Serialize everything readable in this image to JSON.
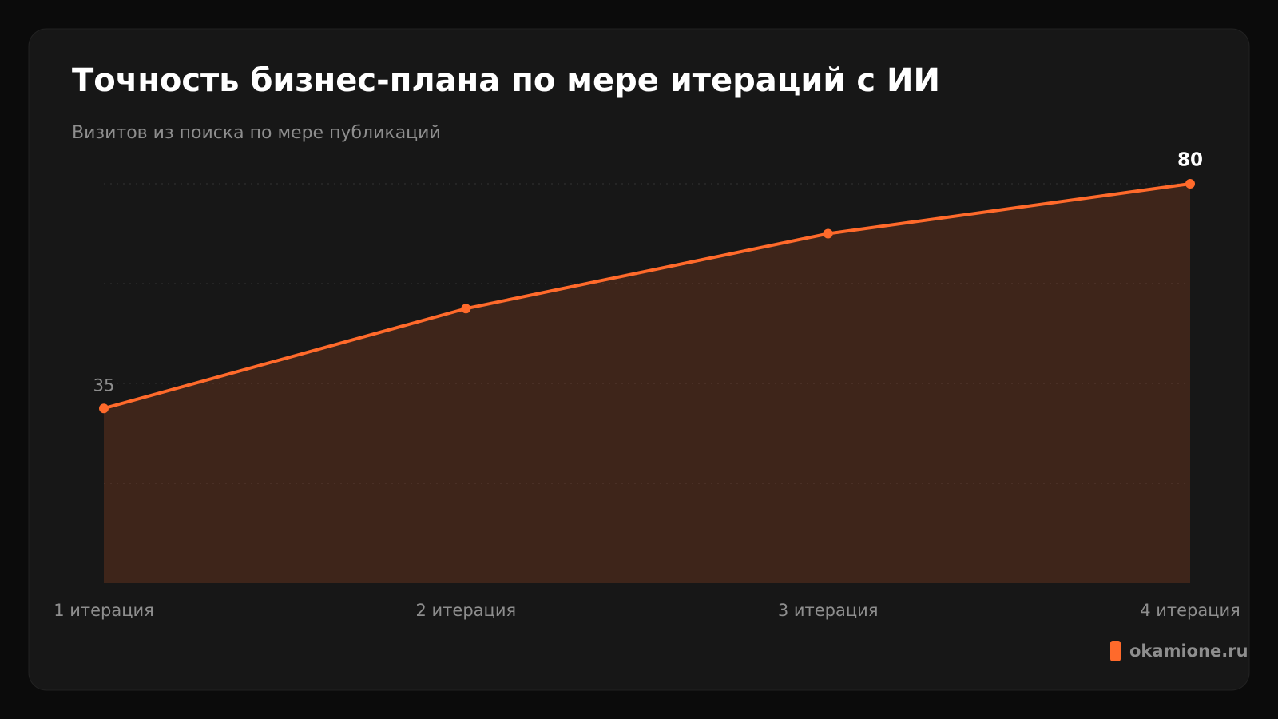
{
  "chart_data": {
    "type": "line",
    "title": "Точность бизнес-плана по мере итераций с ИИ",
    "subtitle": "Визитов из поиска по мере публикаций",
    "categories": [
      "1 итерация",
      "2 итерация",
      "3 итерация",
      "4 итерация"
    ],
    "series": [
      {
        "color": "#ff6a2b",
        "values": [
          35,
          55,
          70,
          80
        ]
      }
    ],
    "ylim": [
      0,
      80
    ],
    "yticks": [
      20,
      40,
      60,
      80
    ],
    "grid": true,
    "source": "okamione.ru"
  }
}
